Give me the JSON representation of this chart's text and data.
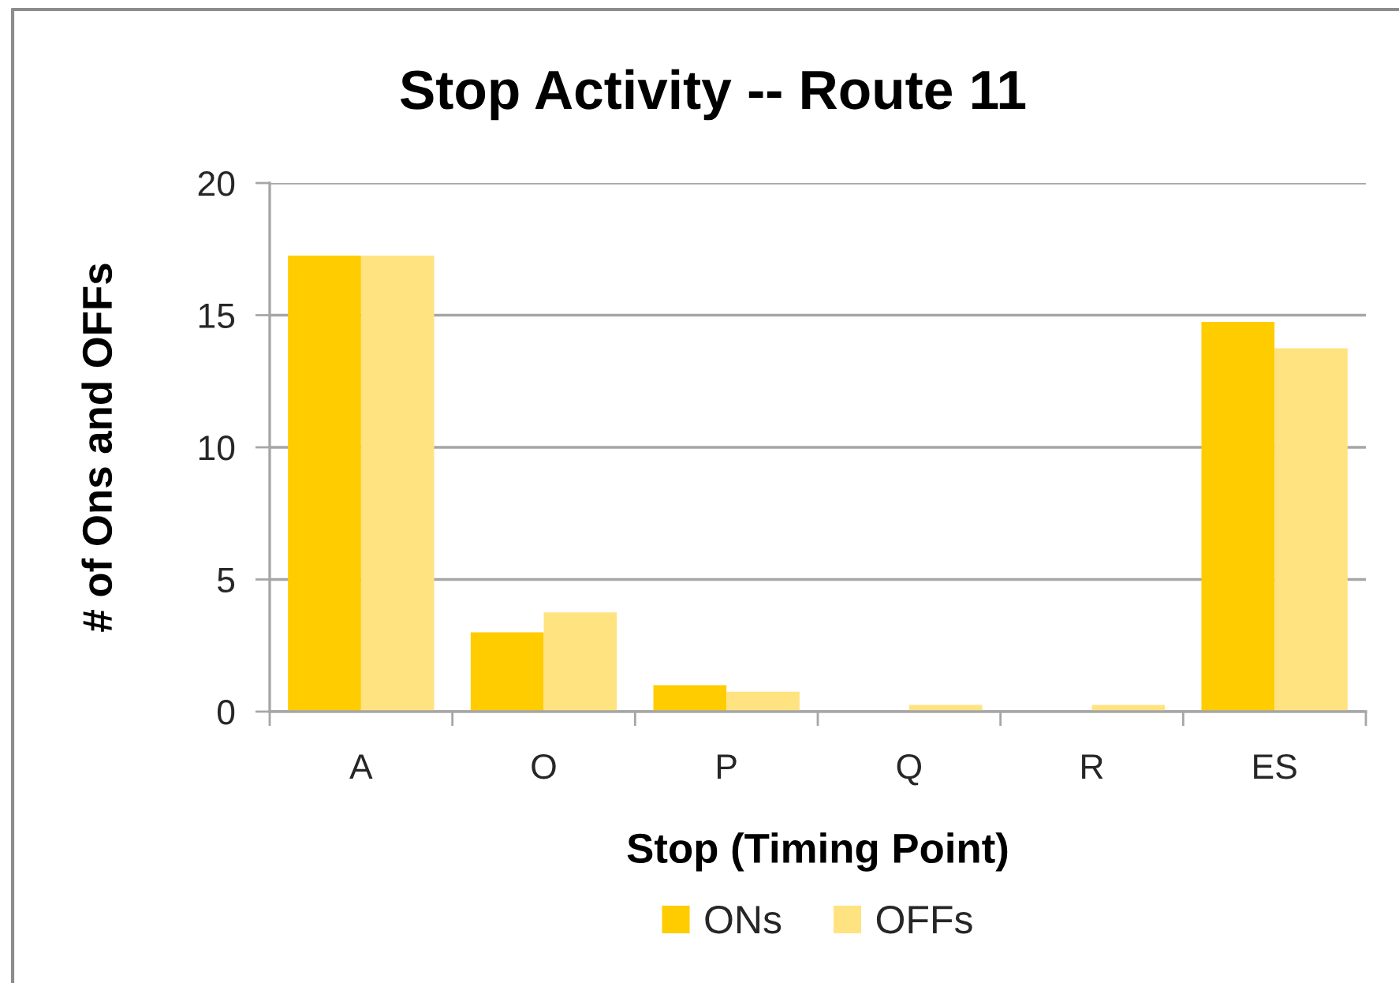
{
  "chart_data": {
    "type": "bar",
    "title": "Stop Activity -- Route 11",
    "xlabel": "Stop (Timing Point)",
    "ylabel": "# of Ons and OFFs",
    "categories": [
      "A",
      "O",
      "P",
      "Q",
      "R",
      "ES"
    ],
    "series": [
      {
        "name": "ONs",
        "color": "#ffcc00",
        "values": [
          17.25,
          3,
          1,
          0,
          0,
          14.75
        ]
      },
      {
        "name": "OFFs",
        "color": "#ffe380",
        "values": [
          17.25,
          3.75,
          0.75,
          0.25,
          0.25,
          13.75
        ]
      }
    ],
    "ylim": [
      0,
      20
    ],
    "yticks": [
      0,
      5,
      10,
      15,
      20
    ],
    "grid": "y",
    "legend": "bottom"
  }
}
